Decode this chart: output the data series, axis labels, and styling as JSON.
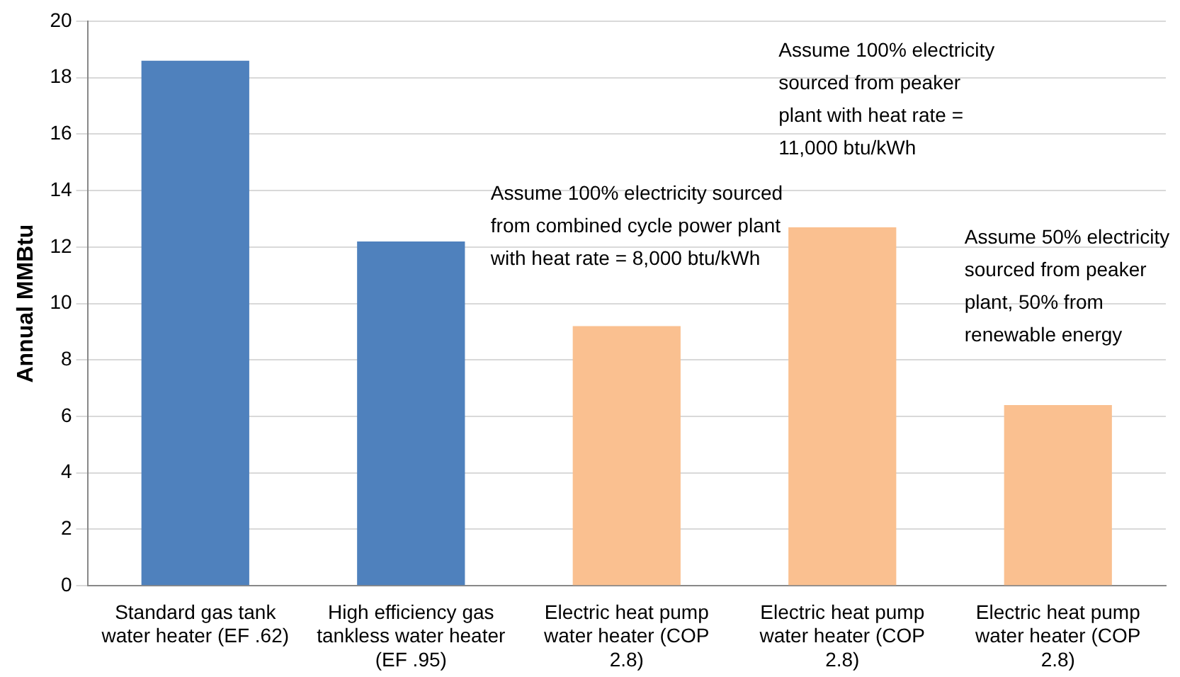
{
  "chart_data": {
    "type": "bar",
    "ylabel": "Annual MMBtu",
    "categories": [
      "Standard gas tank water heater (EF .62)",
      "High efficiency gas tankless water heater (EF .95)",
      "Electric heat pump water heater (COP 2.8)",
      "Electric heat pump water heater (COP 2.8)",
      "Electric heat pump water heater (COP 2.8)"
    ],
    "values": [
      18.6,
      12.2,
      9.2,
      12.7,
      6.4
    ],
    "colors": [
      "#4f81bd",
      "#4f81bd",
      "#fac090",
      "#fac090",
      "#fac090"
    ],
    "ylim": [
      0,
      20
    ],
    "yticks": [
      0,
      2,
      4,
      6,
      8,
      10,
      12,
      14,
      16,
      18,
      20
    ],
    "grid": "y",
    "legend": false,
    "annotations": [
      "Assume 100% electricity sourced from combined cycle power plant with heat rate = 8,000 btu/kWh",
      "Assume 100% electricity sourced from peaker plant with heat rate = 11,000 btu/kWh",
      "Assume 50% electricity sourced from peaker plant, 50% from renewable energy"
    ]
  }
}
